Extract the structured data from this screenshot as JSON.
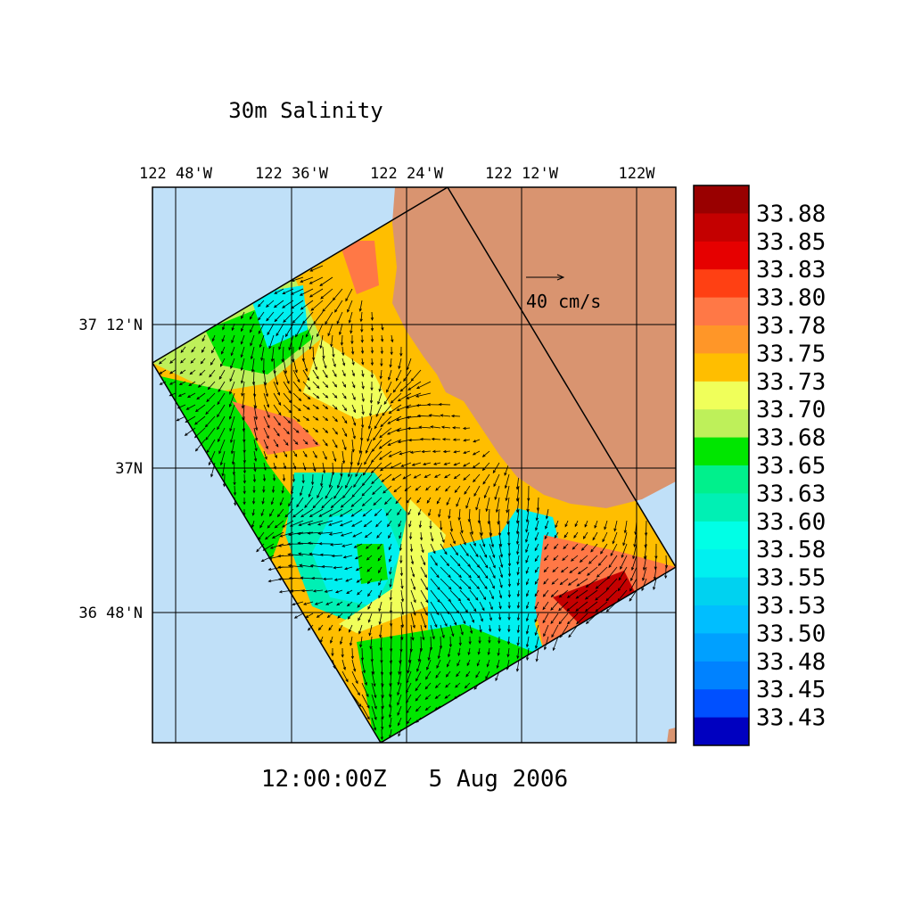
{
  "title": "30m Salinity",
  "time": "12:00:00Z   5 Aug 2006",
  "scale_label": "40 cm/s",
  "lon_labels": [
    "122 48'W",
    "122 36'W",
    "122 24'W",
    "122 12'W",
    "122W"
  ],
  "lat_labels": [
    "37 12'N",
    "37N",
    "36 48'N"
  ],
  "colorbar": {
    "labels": [
      "33.88",
      "33.85",
      "33.83",
      "33.80",
      "33.78",
      "33.75",
      "33.73",
      "33.70",
      "33.68",
      "33.65",
      "33.63",
      "33.60",
      "33.58",
      "33.55",
      "33.53",
      "33.50",
      "33.48",
      "33.45",
      "33.43"
    ],
    "colors": [
      "#990000",
      "#c40000",
      "#e60000",
      "#ff4013",
      "#ff7846",
      "#ff9628",
      "#ffbe00",
      "#f0ff5a",
      "#bef05a",
      "#00e600",
      "#00f08c",
      "#00f0b4",
      "#00ffe6",
      "#00f0f0",
      "#00d2f0",
      "#00beff",
      "#00a0ff",
      "#0082ff",
      "#0050ff",
      "#0000c0"
    ]
  }
}
